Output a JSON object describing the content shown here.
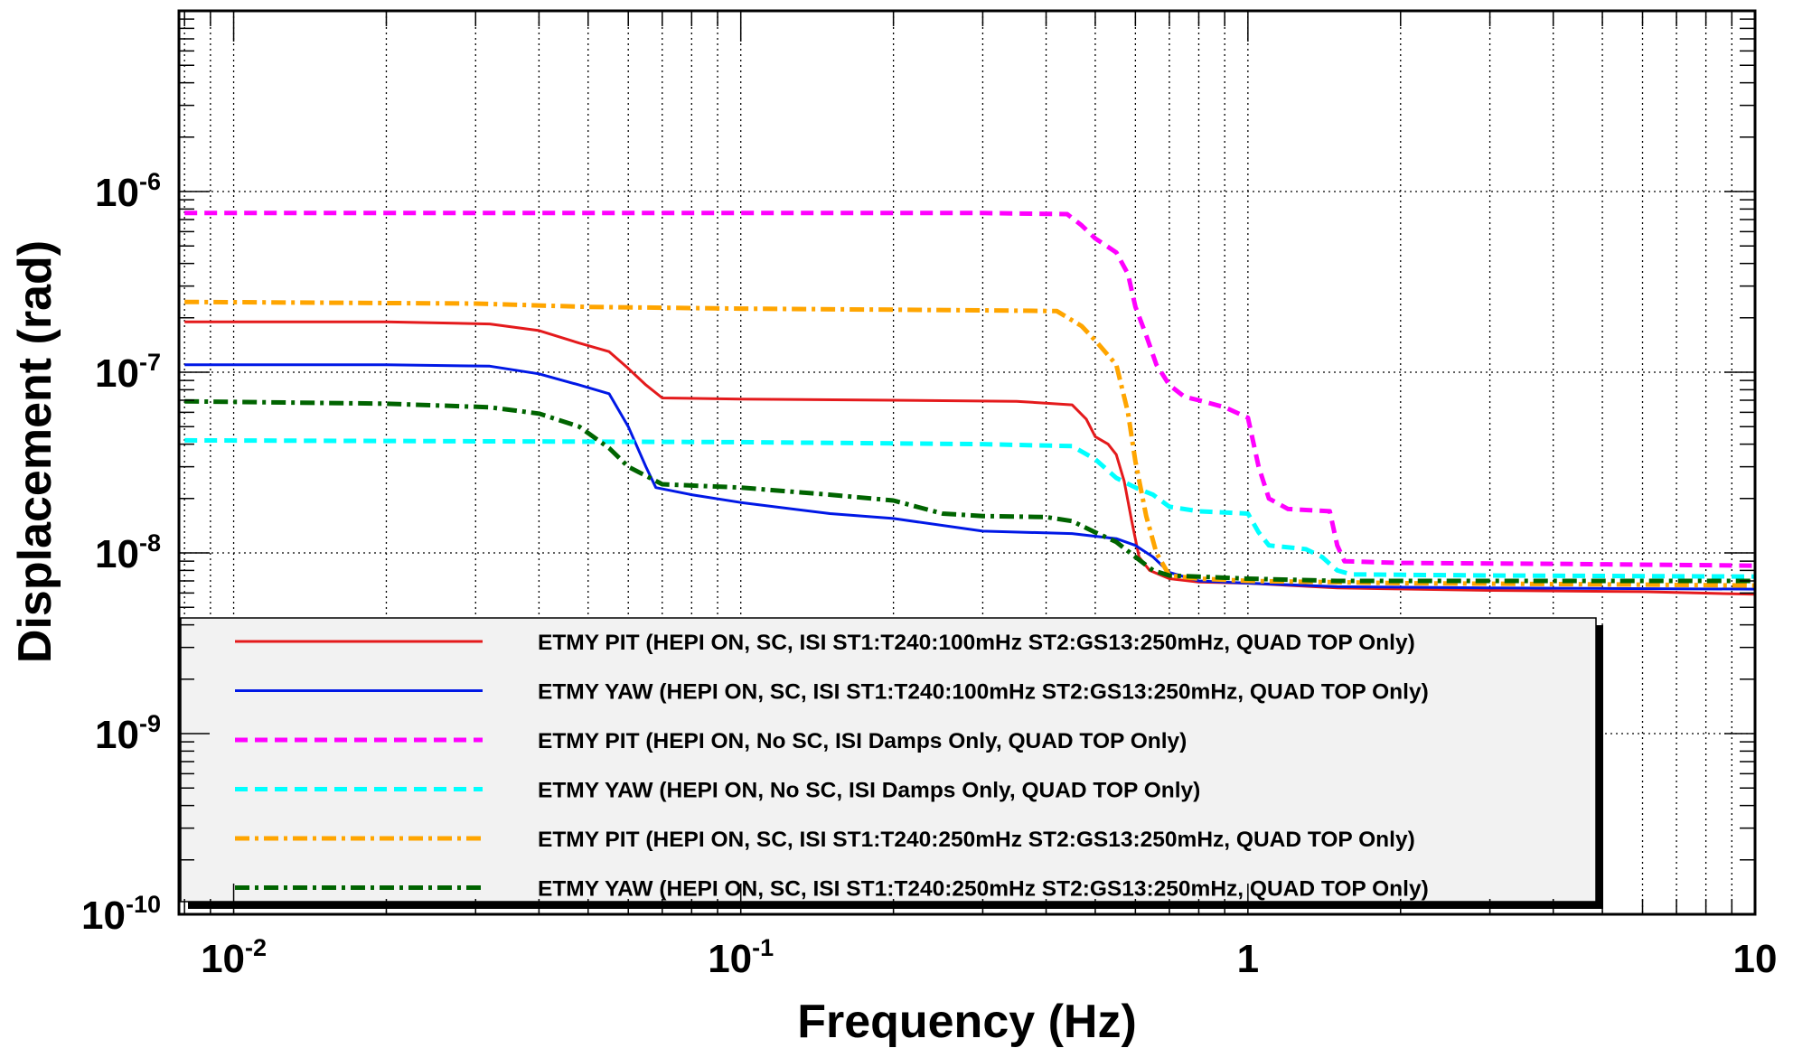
{
  "chart_data": {
    "type": "line",
    "title": "",
    "xlabel": "Frequency (Hz)",
    "ylabel": "Displacement (rad)",
    "x_scale": "log",
    "y_scale": "log",
    "xlim": [
      0.0078,
      10
    ],
    "ylim": [
      1e-10,
      1e-05
    ],
    "grid": true,
    "legend_position": "lower-left",
    "x_ticks": [
      {
        "value": 0.01,
        "base": "10",
        "exp": "-2"
      },
      {
        "value": 0.1,
        "base": "10",
        "exp": "-1"
      },
      {
        "value": 1,
        "base": "1",
        "exp": ""
      },
      {
        "value": 10,
        "base": "10",
        "exp": ""
      }
    ],
    "y_ticks": [
      {
        "value": 1e-10,
        "base": "10",
        "exp": "-10"
      },
      {
        "value": 1e-09,
        "base": "10",
        "exp": "-9"
      },
      {
        "value": 1e-08,
        "base": "10",
        "exp": "-8"
      },
      {
        "value": 1e-07,
        "base": "10",
        "exp": "-7"
      },
      {
        "value": 1e-06,
        "base": "10",
        "exp": "-6"
      }
    ],
    "series": [
      {
        "name": "ETMY PIT (HEPI ON, SC, ISI ST1:T240:100mHz ST2:GS13:250mHz, QUAD TOP Only)",
        "color": "#e41a1c",
        "dash": "solid",
        "width": 3,
        "points": [
          [
            0.008,
            1.9e-07
          ],
          [
            0.02,
            1.9e-07
          ],
          [
            0.032,
            1.85e-07
          ],
          [
            0.04,
            1.7e-07
          ],
          [
            0.048,
            1.45e-07
          ],
          [
            0.055,
            1.3e-07
          ],
          [
            0.06,
            1.05e-07
          ],
          [
            0.065,
            8.5e-08
          ],
          [
            0.07,
            7.2e-08
          ],
          [
            0.1,
            7.1e-08
          ],
          [
            0.2,
            7e-08
          ],
          [
            0.35,
            6.9e-08
          ],
          [
            0.45,
            6.6e-08
          ],
          [
            0.48,
            5.5e-08
          ],
          [
            0.5,
            4.4e-08
          ],
          [
            0.53,
            4e-08
          ],
          [
            0.55,
            3.5e-08
          ],
          [
            0.57,
            2.5e-08
          ],
          [
            0.59,
            1.5e-08
          ],
          [
            0.61,
            9.5e-09
          ],
          [
            0.64,
            8e-09
          ],
          [
            0.7,
            7.2e-09
          ],
          [
            0.8,
            6.9e-09
          ],
          [
            1.0,
            6.8e-09
          ],
          [
            1.5,
            6.4e-09
          ],
          [
            3,
            6.2e-09
          ],
          [
            6,
            6.1e-09
          ],
          [
            10,
            5.9e-09
          ]
        ]
      },
      {
        "name": "ETMY YAW (HEPI ON, SC, ISI ST1:T240:100mHz ST2:GS13:250mHz, QUAD TOP Only)",
        "color": "#0018e6",
        "dash": "solid",
        "width": 3,
        "points": [
          [
            0.008,
            1.1e-07
          ],
          [
            0.02,
            1.1e-07
          ],
          [
            0.032,
            1.08e-07
          ],
          [
            0.04,
            9.8e-08
          ],
          [
            0.048,
            8.5e-08
          ],
          [
            0.055,
            7.6e-08
          ],
          [
            0.06,
            5e-08
          ],
          [
            0.065,
            3e-08
          ],
          [
            0.068,
            2.3e-08
          ],
          [
            0.08,
            2.1e-08
          ],
          [
            0.1,
            1.9e-08
          ],
          [
            0.15,
            1.65e-08
          ],
          [
            0.2,
            1.55e-08
          ],
          [
            0.3,
            1.32e-08
          ],
          [
            0.45,
            1.28e-08
          ],
          [
            0.55,
            1.2e-08
          ],
          [
            0.6,
            1.1e-08
          ],
          [
            0.65,
            9.5e-09
          ],
          [
            0.7,
            7.8e-09
          ],
          [
            0.8,
            7e-09
          ],
          [
            1.0,
            6.8e-09
          ],
          [
            1.5,
            6.5e-09
          ],
          [
            3,
            6.4e-09
          ],
          [
            10,
            6.3e-09
          ]
        ]
      },
      {
        "name": "ETMY PIT (HEPI ON, No SC, ISI Damps Only, QUAD TOP Only)",
        "color": "#ff00ff",
        "dash": "14 8",
        "width": 5,
        "points": [
          [
            0.008,
            7.6e-07
          ],
          [
            0.1,
            7.6e-07
          ],
          [
            0.3,
            7.6e-07
          ],
          [
            0.44,
            7.5e-07
          ],
          [
            0.47,
            6.5e-07
          ],
          [
            0.5,
            5.5e-07
          ],
          [
            0.55,
            4.6e-07
          ],
          [
            0.58,
            3.5e-07
          ],
          [
            0.6,
            2.3e-07
          ],
          [
            0.63,
            1.6e-07
          ],
          [
            0.66,
            1.1e-07
          ],
          [
            0.7,
            8.5e-08
          ],
          [
            0.75,
            7.3e-08
          ],
          [
            0.8,
            7e-08
          ],
          [
            0.9,
            6.4e-08
          ],
          [
            1.0,
            5.6e-08
          ],
          [
            1.05,
            3e-08
          ],
          [
            1.1,
            2e-08
          ],
          [
            1.2,
            1.75e-08
          ],
          [
            1.45,
            1.7e-08
          ],
          [
            1.5,
            1.1e-08
          ],
          [
            1.55,
            9e-09
          ],
          [
            2,
            8.8e-09
          ],
          [
            4,
            8.7e-09
          ],
          [
            10,
            8.5e-09
          ]
        ]
      },
      {
        "name": "ETMY YAW (HEPI ON, No SC, ISI Damps Only, QUAD TOP Only)",
        "color": "#00ffff",
        "dash": "14 8",
        "width": 5,
        "points": [
          [
            0.008,
            4.2e-08
          ],
          [
            0.1,
            4.1e-08
          ],
          [
            0.3,
            4e-08
          ],
          [
            0.45,
            3.9e-08
          ],
          [
            0.5,
            3.3e-08
          ],
          [
            0.55,
            2.6e-08
          ],
          [
            0.6,
            2.3e-08
          ],
          [
            0.65,
            2.1e-08
          ],
          [
            0.7,
            1.8e-08
          ],
          [
            0.8,
            1.7e-08
          ],
          [
            1.0,
            1.65e-08
          ],
          [
            1.05,
            1.3e-08
          ],
          [
            1.1,
            1.1e-08
          ],
          [
            1.3,
            1.05e-08
          ],
          [
            1.4,
            9.5e-09
          ],
          [
            1.5,
            8e-09
          ],
          [
            1.6,
            7.6e-09
          ],
          [
            3,
            7.5e-09
          ],
          [
            10,
            7.4e-09
          ]
        ]
      },
      {
        "name": "ETMY PIT (HEPI ON, SC, ISI ST1:T240:250mHz ST2:GS13:250mHz, QUAD TOP Only)",
        "color": "#ffa500",
        "dash": "16 6 4 6",
        "width": 5,
        "points": [
          [
            0.008,
            2.45e-07
          ],
          [
            0.03,
            2.4e-07
          ],
          [
            0.05,
            2.3e-07
          ],
          [
            0.1,
            2.25e-07
          ],
          [
            0.3,
            2.2e-07
          ],
          [
            0.42,
            2.18e-07
          ],
          [
            0.47,
            1.8e-07
          ],
          [
            0.5,
            1.5e-07
          ],
          [
            0.55,
            1.1e-07
          ],
          [
            0.58,
            6e-08
          ],
          [
            0.6,
            3.2e-08
          ],
          [
            0.63,
            1.6e-08
          ],
          [
            0.66,
            1e-08
          ],
          [
            0.7,
            7.5e-09
          ],
          [
            0.8,
            7.2e-09
          ],
          [
            1.0,
            7e-09
          ],
          [
            2,
            6.8e-09
          ],
          [
            5,
            6.7e-09
          ],
          [
            10,
            6.6e-09
          ]
        ]
      },
      {
        "name": "ETMY YAW (HEPI ON, SC, ISI ST1:T240:250mHz ST2:GS13:250mHz, QUAD TOP Only)",
        "color": "#006400",
        "dash": "16 6 4 6",
        "width": 5,
        "points": [
          [
            0.008,
            6.9e-08
          ],
          [
            0.02,
            6.7e-08
          ],
          [
            0.032,
            6.4e-08
          ],
          [
            0.04,
            5.9e-08
          ],
          [
            0.048,
            5e-08
          ],
          [
            0.055,
            3.8e-08
          ],
          [
            0.06,
            3e-08
          ],
          [
            0.07,
            2.4e-08
          ],
          [
            0.1,
            2.3e-08
          ],
          [
            0.15,
            2.1e-08
          ],
          [
            0.2,
            1.95e-08
          ],
          [
            0.25,
            1.65e-08
          ],
          [
            0.3,
            1.6e-08
          ],
          [
            0.4,
            1.58e-08
          ],
          [
            0.45,
            1.5e-08
          ],
          [
            0.5,
            1.3e-08
          ],
          [
            0.55,
            1.15e-08
          ],
          [
            0.6,
            9.5e-09
          ],
          [
            0.65,
            8e-09
          ],
          [
            0.7,
            7.5e-09
          ],
          [
            1.0,
            7.2e-09
          ],
          [
            1.5,
            7e-09
          ],
          [
            3,
            7e-09
          ],
          [
            10,
            7e-09
          ]
        ]
      }
    ]
  }
}
